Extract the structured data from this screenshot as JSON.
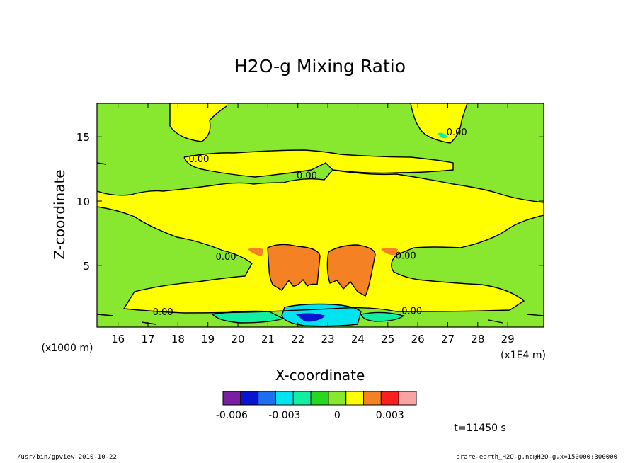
{
  "chart_data": {
    "type": "contour",
    "title": "H2O-g Mixing Ratio",
    "xlabel": "X-coordinate",
    "ylabel": "Z-coordinate",
    "x_unit": "(x1E4 m)",
    "y_unit": "(x1000 m)",
    "xlim": [
      15.3,
      30.2
    ],
    "ylim": [
      0.2,
      17.6
    ],
    "x_ticks": [
      16,
      17,
      18,
      19,
      20,
      21,
      22,
      23,
      24,
      25,
      26,
      27,
      28,
      29
    ],
    "y_ticks": [
      5,
      10,
      15
    ],
    "contour_labels": [
      {
        "text": "0.00",
        "x": 18.7,
        "y": 13.3
      },
      {
        "text": "0.00",
        "x": 22.3,
        "y": 12.0
      },
      {
        "text": "0.00",
        "x": 27.3,
        "y": 15.4
      },
      {
        "text": "0.00",
        "x": 19.6,
        "y": 5.7
      },
      {
        "text": "0.00",
        "x": 25.6,
        "y": 5.8
      },
      {
        "text": "0.00",
        "x": 17.5,
        "y": 1.4
      },
      {
        "text": "0.00",
        "x": 25.8,
        "y": 1.5
      }
    ],
    "colorbar": {
      "colors": [
        "#7a1fa2",
        "#0a14d0",
        "#1e6ef0",
        "#00e4f0",
        "#10f0a0",
        "#28d820",
        "#88e830",
        "#ffff00",
        "#f48224",
        "#fa2020",
        "#f8a4a4"
      ],
      "tick_labels": [
        "-0.006",
        "-0.003",
        "0",
        "0.003"
      ],
      "tick_values": [
        -0.006,
        -0.003,
        0,
        0.003
      ]
    },
    "regions": [
      {
        "name": "background",
        "color": "#88e830"
      },
      {
        "name": "positive",
        "color": "#ffff00"
      },
      {
        "name": "strong-positive",
        "color": "#f48224"
      },
      {
        "name": "negative-near-surface",
        "color": "#10f0a0"
      },
      {
        "name": "most-negative",
        "color": "#0a14d0"
      }
    ]
  },
  "annotations": {
    "time": "t=11450 s",
    "footer_left": "/usr/bin/gpview  2010-10-22",
    "footer_right": "arare-earth_H2O-g.nc@H2O-g,x=150000:300000"
  }
}
